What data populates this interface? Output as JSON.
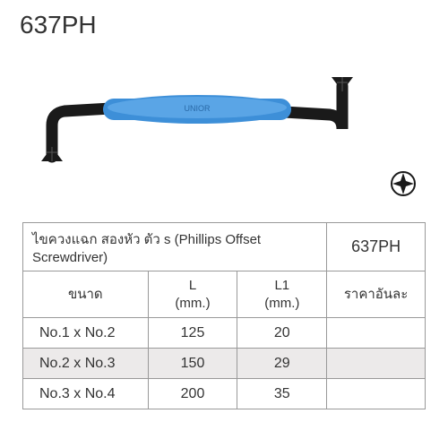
{
  "model_code": "637PH",
  "title_row": {
    "title": "ไขควงแฉก สองหัว ตัว s (Phillips Offset Screwdriver)",
    "code": "637PH"
  },
  "table": {
    "headers": {
      "size": "ขนาด",
      "L": "L\n(mm.)",
      "L1": "L1\n(mm.)",
      "price": "ราคาอันละ"
    },
    "rows": [
      {
        "size": "No.1  x  No.2",
        "L": "125",
        "L1": "20",
        "price": "",
        "striped": false
      },
      {
        "size": "No.2  x  No.3",
        "L": "150",
        "L1": "29",
        "price": "",
        "striped": true
      },
      {
        "size": "No.3  x  No.4",
        "L": "200",
        "L1": "35",
        "price": "",
        "striped": false
      }
    ]
  },
  "image": {
    "handle_color": "#3d8fd8",
    "shaft_color": "#1a1a1a"
  },
  "icon": {
    "stroke": "#1a1a1a"
  }
}
